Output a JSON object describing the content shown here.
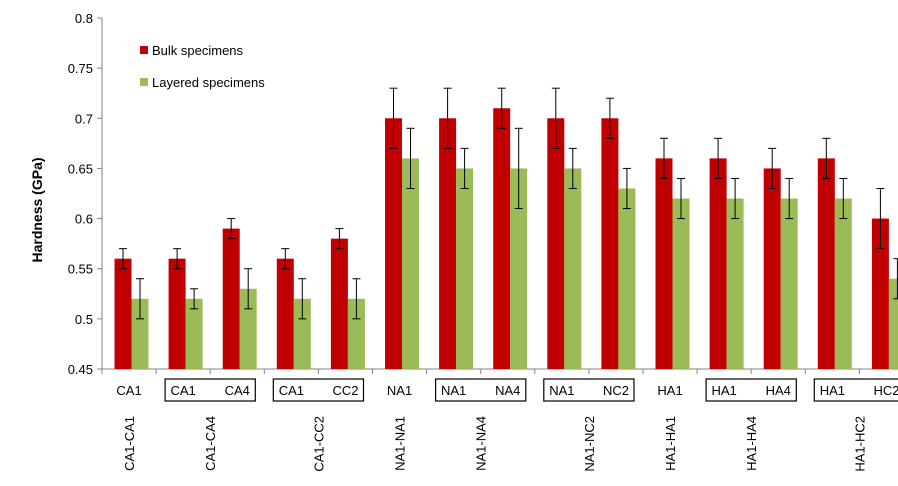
{
  "chart_data": {
    "type": "bar",
    "xlabel": "",
    "ylabel": "Hardness (GPa)",
    "ylim": [
      0.45,
      0.8
    ],
    "yticks": [
      "0.45",
      "0.5",
      "0.55",
      "0.6",
      "0.65",
      "0.7",
      "0.75",
      "0.8"
    ],
    "grid": false,
    "legend_position": "top-left",
    "groups": [
      {
        "name": "CA1-CA1",
        "categories": [
          "CA1"
        ]
      },
      {
        "name": "CA1-CA4",
        "categories": [
          "CA1",
          "CA4"
        ]
      },
      {
        "name": "CA1-CC2",
        "categories": [
          "CA1",
          "CC2"
        ]
      },
      {
        "name": "NA1-NA1",
        "categories": [
          "NA1"
        ]
      },
      {
        "name": "NA1-NA4",
        "categories": [
          "NA1",
          "NA4"
        ]
      },
      {
        "name": "NA1-NC2",
        "categories": [
          "NA1",
          "NC2"
        ]
      },
      {
        "name": "HA1-HA1",
        "categories": [
          "HA1"
        ]
      },
      {
        "name": "HA1-HA4",
        "categories": [
          "HA1",
          "HA4"
        ]
      },
      {
        "name": "HA1-HC2",
        "categories": [
          "HA1",
          "HC2"
        ]
      }
    ],
    "series": [
      {
        "name": "Bulk specimens",
        "color": "#c00000",
        "values": [
          0.56,
          0.56,
          0.59,
          0.56,
          0.58,
          0.7,
          0.7,
          0.71,
          0.7,
          0.7,
          0.66,
          0.66,
          0.65,
          0.66,
          0.6
        ],
        "error": [
          0.01,
          0.01,
          0.01,
          0.01,
          0.01,
          0.03,
          0.03,
          0.02,
          0.03,
          0.02,
          0.02,
          0.02,
          0.02,
          0.02,
          0.03
        ]
      },
      {
        "name": "Layered specimens",
        "color": "#9bbb59",
        "values": [
          0.52,
          0.52,
          0.53,
          0.52,
          0.52,
          0.66,
          0.65,
          0.65,
          0.65,
          0.63,
          0.62,
          0.62,
          0.62,
          0.62,
          0.54
        ],
        "error": [
          0.02,
          0.01,
          0.02,
          0.02,
          0.02,
          0.03,
          0.02,
          0.04,
          0.02,
          0.02,
          0.02,
          0.02,
          0.02,
          0.02,
          0.02
        ]
      }
    ]
  }
}
